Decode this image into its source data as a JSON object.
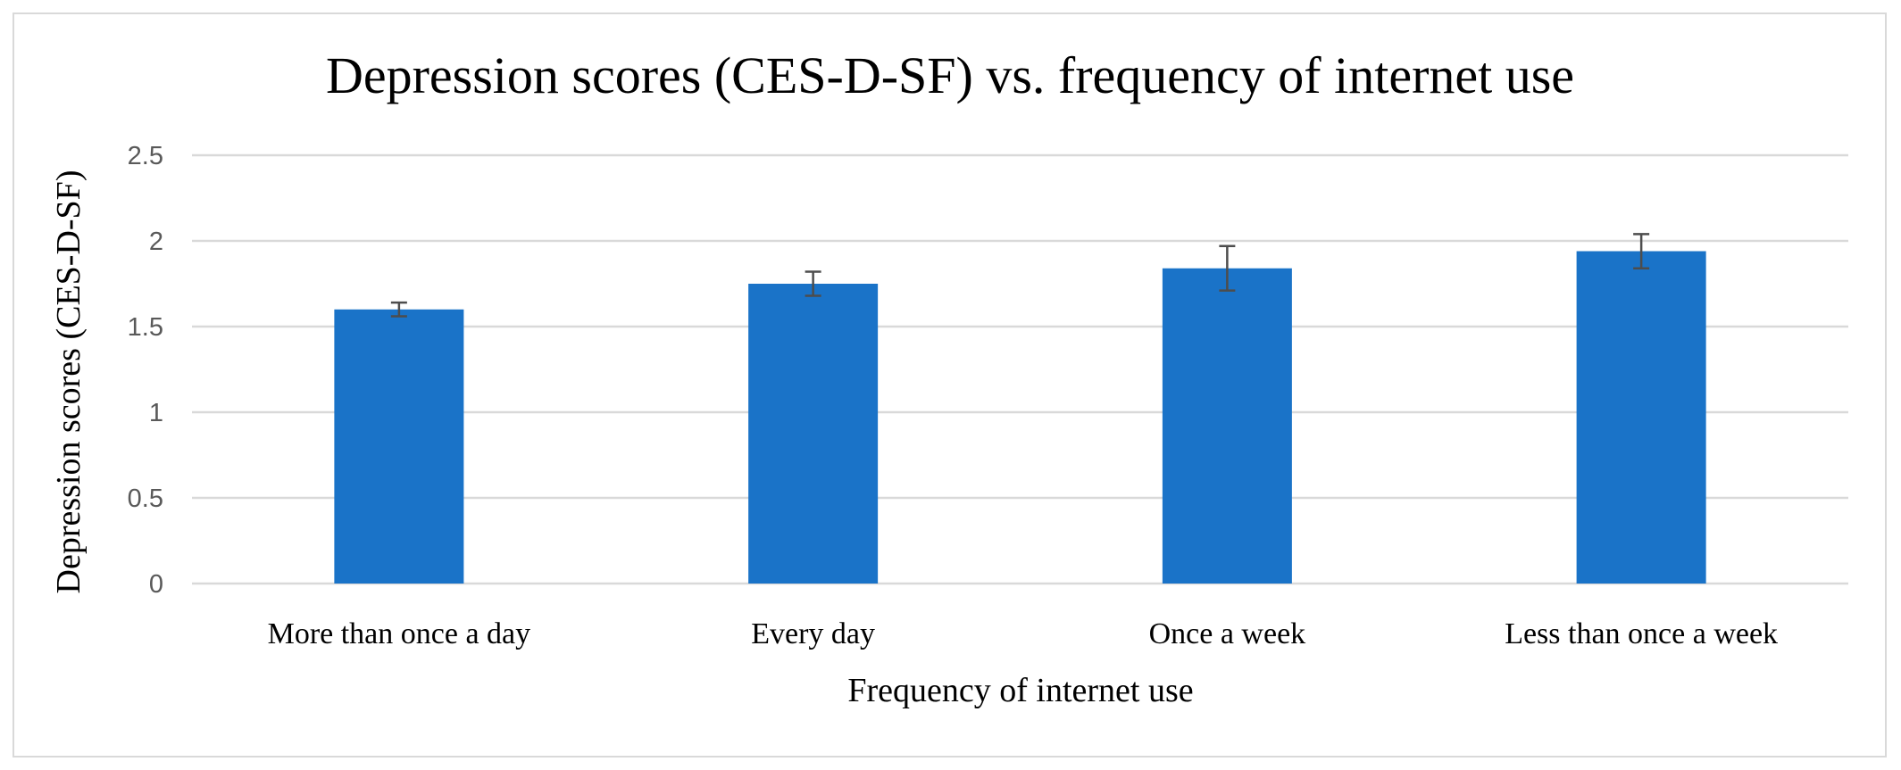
{
  "chart_data": {
    "type": "bar",
    "title": "Depression scores (CES-D-SF) vs. frequency of internet use",
    "xlabel": "Frequency of internet use",
    "ylabel": "Depression scores (CES-D-SF)",
    "categories": [
      "More than once a day",
      "Every day",
      "Once a week",
      "Less than once a week"
    ],
    "values": [
      1.6,
      1.75,
      1.84,
      1.94
    ],
    "error_bars": [
      0.04,
      0.07,
      0.13,
      0.1
    ],
    "ylim": [
      0,
      2.5
    ],
    "yticks": [
      0,
      0.5,
      1,
      1.5,
      2,
      2.5
    ],
    "ytick_labels": [
      "0",
      "0.5",
      "1",
      "1.5",
      "2",
      "2.5"
    ],
    "grid": true,
    "legend": "none",
    "bar_color": "#1a73c8",
    "error_color": "#4d4d4d",
    "grid_color": "#d9d9d9"
  }
}
